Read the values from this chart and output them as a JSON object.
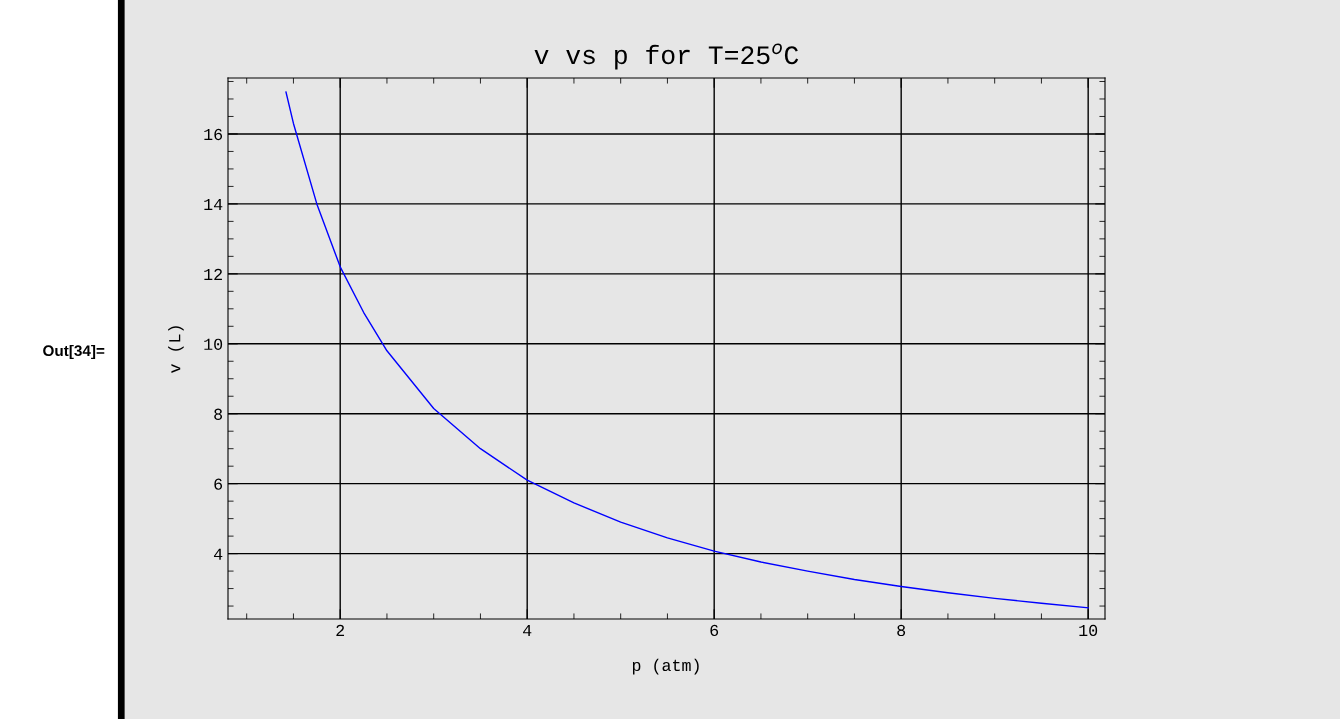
{
  "chart_data": {
    "type": "line",
    "title": "v vs p for T=25$^{o}$C",
    "xlabel": "p (atm)",
    "ylabel": "v (L)",
    "annotations": [
      "Out[34]="
    ],
    "x": [
      1.42,
      1.5,
      1.75,
      2,
      2.25,
      2.5,
      3,
      3.5,
      4,
      4.5,
      5,
      5.5,
      6,
      6.5,
      7,
      7.5,
      8,
      8.5,
      9,
      9.5,
      10
    ],
    "series": [
      {
        "color": "#0000ff",
        "values": [
          17.2,
          16.3,
          14.0,
          12.2,
          10.9,
          9.8,
          8.15,
          7.0,
          6.1,
          5.45,
          4.9,
          4.45,
          4.07,
          3.76,
          3.5,
          3.26,
          3.06,
          2.88,
          2.72,
          2.58,
          2.45
        ]
      }
    ],
    "xlim": [
      0.8,
      10.18
    ],
    "ylim": [
      2.13,
      17.6
    ],
    "xticks": [
      2,
      4,
      6,
      8,
      10
    ],
    "yticks": [
      4,
      6,
      8,
      10,
      12,
      14,
      16
    ],
    "grid": true,
    "marker": "none",
    "line_style": "solid"
  }
}
